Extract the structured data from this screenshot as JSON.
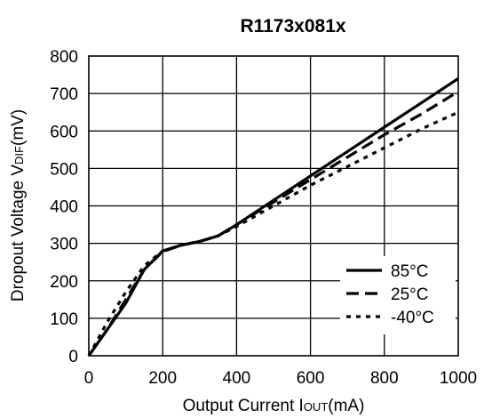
{
  "chart_data": {
    "type": "line",
    "title": "R1173x081x",
    "xlabel": {
      "main": "Output Current I",
      "sub": "OUT",
      "unit": "(mA)"
    },
    "ylabel": {
      "main": "Dropout Voltage V",
      "sub": "DIF",
      "unit": "(mV)"
    },
    "xlim": [
      0,
      1000
    ],
    "ylim": [
      0,
      800
    ],
    "xticks": [
      0,
      200,
      400,
      600,
      800,
      1000
    ],
    "yticks": [
      0,
      100,
      200,
      300,
      400,
      500,
      600,
      700,
      800
    ],
    "grid": true,
    "legend_position": "bottom-right",
    "series": [
      {
        "name": "85°C",
        "dash": "solid",
        "points": [
          [
            0,
            0
          ],
          [
            50,
            70
          ],
          [
            100,
            140
          ],
          [
            150,
            230
          ],
          [
            200,
            280
          ],
          [
            250,
            295
          ],
          [
            300,
            305
          ],
          [
            350,
            320
          ],
          [
            400,
            350
          ],
          [
            500,
            415
          ],
          [
            600,
            480
          ],
          [
            700,
            545
          ],
          [
            800,
            610
          ],
          [
            900,
            675
          ],
          [
            1000,
            740
          ]
        ]
      },
      {
        "name": "25°C",
        "dash": "dashed",
        "points": [
          [
            0,
            0
          ],
          [
            50,
            70
          ],
          [
            100,
            150
          ],
          [
            150,
            230
          ],
          [
            200,
            278
          ],
          [
            250,
            295
          ],
          [
            300,
            305
          ],
          [
            350,
            320
          ],
          [
            400,
            350
          ],
          [
            500,
            410
          ],
          [
            600,
            470
          ],
          [
            700,
            530
          ],
          [
            800,
            590
          ],
          [
            900,
            645
          ],
          [
            1000,
            705
          ]
        ]
      },
      {
        "name": "-40°C",
        "dash": "dotted",
        "points": [
          [
            0,
            0
          ],
          [
            50,
            90
          ],
          [
            100,
            170
          ],
          [
            150,
            240
          ],
          [
            200,
            280
          ],
          [
            250,
            295
          ],
          [
            300,
            305
          ],
          [
            350,
            320
          ],
          [
            400,
            345
          ],
          [
            500,
            400
          ],
          [
            600,
            455
          ],
          [
            700,
            505
          ],
          [
            800,
            555
          ],
          [
            900,
            605
          ],
          [
            1000,
            650
          ]
        ]
      }
    ]
  }
}
